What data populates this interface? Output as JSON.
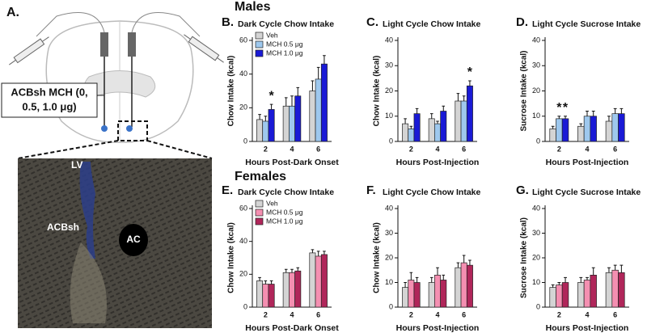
{
  "panel_a": {
    "letter": "A.",
    "treatment_label": [
      "ACBsh MCH (0,",
      "0.5, 1.0 μg)"
    ],
    "photo_labels": [
      "LV",
      "ACBsh",
      "AC"
    ]
  },
  "section_labels": [
    "Males",
    "Females"
  ],
  "chart_data": [
    {
      "type": "bar",
      "letter": "B.",
      "title": "Dark Cycle Chow Intake",
      "y_label": "Chow Intake (kcal)",
      "x_label": "Hours Post-Dark Onset",
      "categories": [
        "2",
        "4",
        "6"
      ],
      "ylim": [
        0,
        60
      ],
      "yticks": [
        0,
        20,
        40,
        60
      ],
      "legend": true,
      "series": [
        {
          "name": "Veh",
          "color": "#d4d4d4",
          "values": [
            13,
            21,
            30
          ],
          "errors": [
            3,
            5,
            6
          ],
          "annotations": [
            null,
            null,
            null
          ]
        },
        {
          "name": "MCH 0.5 μg",
          "color": "#9ec8ee",
          "values": [
            12,
            21,
            37
          ],
          "errors": [
            3,
            6,
            7
          ],
          "annotations": [
            null,
            null,
            null
          ]
        },
        {
          "name": "MCH 1.0 μg",
          "color": "#1a1ad6",
          "values": [
            19,
            27,
            46
          ],
          "errors": [
            3,
            5,
            5
          ],
          "annotations": [
            "*",
            null,
            null
          ]
        }
      ]
    },
    {
      "type": "bar",
      "letter": "C.",
      "title": "Light Cycle Chow Intake",
      "y_label": "Chow Intake (kcal)",
      "x_label": "Hours Post-Injection",
      "categories": [
        "2",
        "4",
        "6"
      ],
      "ylim": [
        0,
        40
      ],
      "yticks": [
        0,
        10,
        20,
        30,
        40
      ],
      "legend": false,
      "series": [
        {
          "name": "Veh",
          "color": "#d4d4d4",
          "values": [
            7,
            9,
            16
          ],
          "errors": [
            2,
            2,
            3
          ],
          "annotations": [
            null,
            null,
            null
          ]
        },
        {
          "name": "MCH 0.5 μg",
          "color": "#9ec8ee",
          "values": [
            5,
            7,
            16
          ],
          "errors": [
            1,
            1,
            2
          ],
          "annotations": [
            null,
            null,
            null
          ]
        },
        {
          "name": "MCH 1.0 μg",
          "color": "#1a1ad6",
          "values": [
            11,
            12,
            22
          ],
          "errors": [
            2,
            2,
            2
          ],
          "annotations": [
            null,
            null,
            "*"
          ]
        }
      ]
    },
    {
      "type": "bar",
      "letter": "D.",
      "title": "Light Cycle Sucrose Intake",
      "y_label": "Sucrose Intake (kcal)",
      "x_label": "Hours Post-Injection",
      "categories": [
        "2",
        "4",
        "6"
      ],
      "ylim": [
        0,
        40
      ],
      "yticks": [
        0,
        10,
        20,
        30,
        40
      ],
      "legend": false,
      "series": [
        {
          "name": "Veh",
          "color": "#d4d4d4",
          "values": [
            5,
            6,
            8
          ],
          "errors": [
            1,
            1,
            2
          ],
          "annotations": [
            null,
            null,
            null
          ]
        },
        {
          "name": "MCH 0.5 μg",
          "color": "#9ec8ee",
          "values": [
            9,
            10,
            11
          ],
          "errors": [
            1,
            2,
            2
          ],
          "annotations": [
            "*",
            null,
            null
          ]
        },
        {
          "name": "MCH 1.0 μg",
          "color": "#1a1ad6",
          "values": [
            9,
            10,
            11
          ],
          "errors": [
            1,
            2,
            2
          ],
          "annotations": [
            "*",
            null,
            null
          ]
        }
      ]
    },
    {
      "type": "bar",
      "letter": "E.",
      "title": "Dark Cycle Chow Intake",
      "y_label": "Chow Intake (kcal)",
      "x_label": "Hours Post-Dark Onset",
      "categories": [
        "2",
        "4",
        "6"
      ],
      "ylim": [
        0,
        60
      ],
      "yticks": [
        0,
        20,
        40,
        60
      ],
      "legend": true,
      "series": [
        {
          "name": "Veh",
          "color": "#d4d4d4",
          "values": [
            16,
            21,
            33
          ],
          "errors": [
            2,
            2,
            2
          ],
          "annotations": [
            null,
            null,
            null
          ]
        },
        {
          "name": "MCH 0.5 μg",
          "color": "#f48fb1",
          "values": [
            14,
            21,
            31
          ],
          "errors": [
            2,
            2,
            3
          ],
          "annotations": [
            null,
            null,
            null
          ]
        },
        {
          "name": "MCH 1.0 μg",
          "color": "#b0265a",
          "values": [
            14,
            22,
            32
          ],
          "errors": [
            2,
            2,
            2
          ],
          "annotations": [
            null,
            null,
            null
          ]
        }
      ]
    },
    {
      "type": "bar",
      "letter": "F.",
      "title": "Light Cycle Chow Intake",
      "y_label": "Chow Intake (kcal)",
      "x_label": "Hours Post-Injection",
      "categories": [
        "2",
        "4",
        "6"
      ],
      "ylim": [
        0,
        40
      ],
      "yticks": [
        0,
        10,
        20,
        30,
        40
      ],
      "legend": false,
      "series": [
        {
          "name": "Veh",
          "color": "#d4d4d4",
          "values": [
            8,
            10,
            16
          ],
          "errors": [
            2,
            2,
            2
          ],
          "annotations": [
            null,
            null,
            null
          ]
        },
        {
          "name": "MCH 0.5 μg",
          "color": "#f48fb1",
          "values": [
            11,
            13,
            18
          ],
          "errors": [
            3,
            3,
            3
          ],
          "annotations": [
            null,
            null,
            null
          ]
        },
        {
          "name": "MCH 1.0 μg",
          "color": "#b0265a",
          "values": [
            10,
            11,
            17
          ],
          "errors": [
            2,
            2,
            2
          ],
          "annotations": [
            null,
            null,
            null
          ]
        }
      ]
    },
    {
      "type": "bar",
      "letter": "G.",
      "title": "Light Cycle Sucrose Intake",
      "y_label": "Sucrose Intake (kcal)",
      "x_label": "Hours Post-Injection",
      "categories": [
        "2",
        "4",
        "6"
      ],
      "ylim": [
        0,
        40
      ],
      "yticks": [
        0,
        10,
        20,
        30,
        40
      ],
      "legend": false,
      "series": [
        {
          "name": "Veh",
          "color": "#d4d4d4",
          "values": [
            8,
            10,
            14
          ],
          "errors": [
            1,
            2,
            2
          ],
          "annotations": [
            null,
            null,
            null
          ]
        },
        {
          "name": "MCH 0.5 μg",
          "color": "#f48fb1",
          "values": [
            9,
            11,
            15
          ],
          "errors": [
            1,
            1,
            2
          ],
          "annotations": [
            null,
            null,
            null
          ]
        },
        {
          "name": "MCH 1.0 μg",
          "color": "#b0265a",
          "values": [
            10,
            13,
            14
          ],
          "errors": [
            2,
            3,
            3
          ],
          "annotations": [
            null,
            null,
            null
          ]
        }
      ]
    }
  ]
}
